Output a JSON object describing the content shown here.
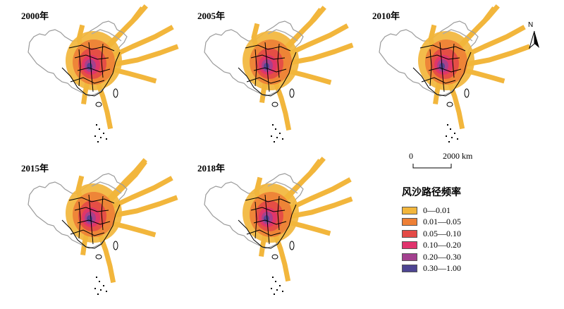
{
  "panels": [
    {
      "year": "2000年"
    },
    {
      "year": "2005年"
    },
    {
      "year": "2010年"
    },
    {
      "year": "2015年"
    },
    {
      "year": "2018年"
    }
  ],
  "north_label": "N",
  "scale": {
    "zero": "0",
    "distance": "2000 km"
  },
  "legend": {
    "title": "风沙路径频率",
    "items": [
      {
        "label": "0—0.01",
        "color": "#f2b63c"
      },
      {
        "label": "0.01—0.05",
        "color": "#ee8036"
      },
      {
        "label": "0.05—0.10",
        "color": "#e44a47"
      },
      {
        "label": "0.10—0.20",
        "color": "#e0336d"
      },
      {
        "label": "0.20—0.30",
        "color": "#a3418f"
      },
      {
        "label": "0.30—1.00",
        "color": "#4d4592"
      }
    ]
  }
}
